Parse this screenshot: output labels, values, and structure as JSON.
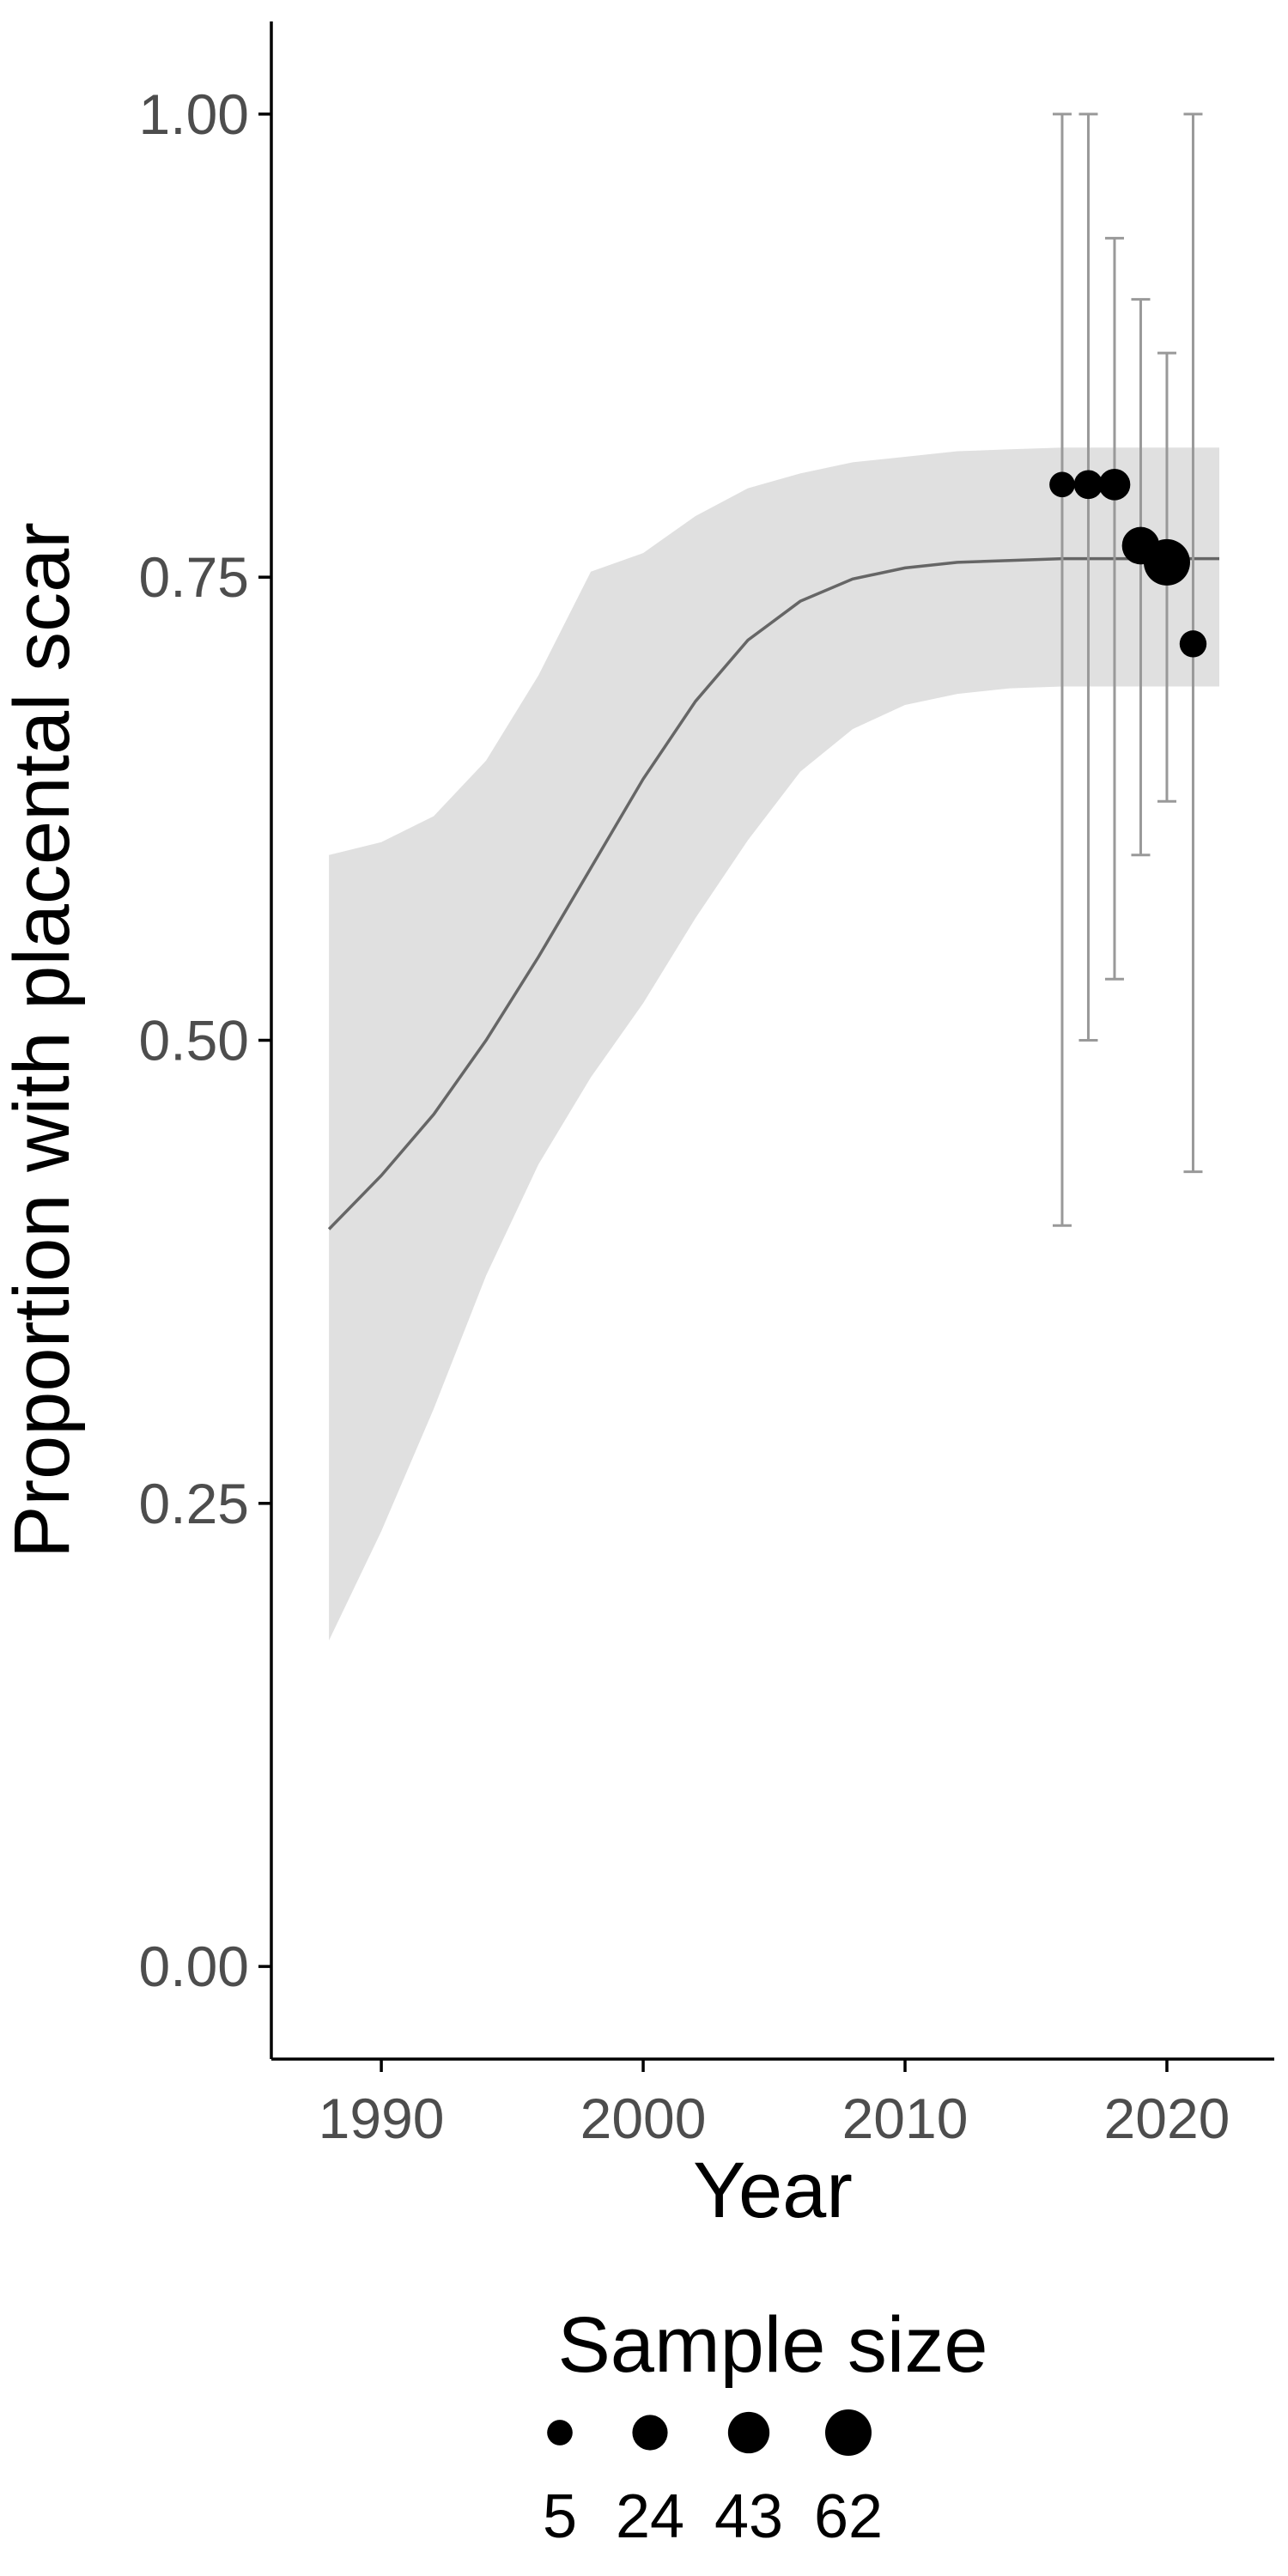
{
  "chart_data": {
    "type": "scatter",
    "title": "",
    "xlabel": "Year",
    "ylabel": "Proportion with placental scar",
    "xlim": [
      1985.8,
      2024.1
    ],
    "ylim": [
      -0.05,
      1.05
    ],
    "x_ticks": [
      1990,
      2000,
      2010,
      2020
    ],
    "x_tick_labels": [
      "1990",
      "2000",
      "2010",
      "2020"
    ],
    "y_ticks": [
      0,
      0.25,
      0.5,
      0.75,
      1.0
    ],
    "y_tick_labels": [
      "0.00",
      "0.25",
      "0.50",
      "0.75",
      "1.00"
    ],
    "grid": false,
    "points": [
      {
        "x": 2016,
        "y": 0.8,
        "n": 5,
        "lower": 0.4,
        "upper": 1.0
      },
      {
        "x": 2017,
        "y": 0.8,
        "n": 10,
        "lower": 0.5,
        "upper": 1.0
      },
      {
        "x": 2018,
        "y": 0.8,
        "n": 15,
        "lower": 0.533,
        "upper": 0.933
      },
      {
        "x": 2019,
        "y": 0.767,
        "n": 30,
        "lower": 0.6,
        "upper": 0.9
      },
      {
        "x": 2020,
        "y": 0.758,
        "n": 62,
        "lower": 0.629,
        "upper": 0.871
      },
      {
        "x": 2021,
        "y": 0.714,
        "n": 7,
        "lower": 0.429,
        "upper": 1.0
      }
    ],
    "fit": {
      "x": [
        1988,
        1990,
        1992,
        1994,
        1996,
        1998,
        2000,
        2002,
        2004,
        2006,
        2008,
        2010,
        2012,
        2014,
        2016,
        2018,
        2020,
        2022
      ],
      "y": [
        0.398,
        0.427,
        0.46,
        0.5,
        0.545,
        0.593,
        0.641,
        0.683,
        0.716,
        0.737,
        0.749,
        0.755,
        0.758,
        0.759,
        0.76,
        0.76,
        0.76,
        0.76
      ],
      "lower": [
        0.176,
        0.235,
        0.301,
        0.373,
        0.433,
        0.48,
        0.52,
        0.566,
        0.608,
        0.645,
        0.668,
        0.681,
        0.687,
        0.69,
        0.691,
        0.691,
        0.691,
        0.691
      ],
      "upper": [
        0.6,
        0.607,
        0.621,
        0.651,
        0.697,
        0.753,
        0.763,
        0.783,
        0.798,
        0.806,
        0.812,
        0.815,
        0.818,
        0.819,
        0.82,
        0.82,
        0.82,
        0.82
      ]
    },
    "legend": {
      "title": "Sample size",
      "placement": "bottom",
      "sizes": [
        5,
        24,
        43,
        62
      ],
      "labels": [
        "5",
        "24",
        "43",
        "62"
      ]
    },
    "colors": {
      "point": "#000000",
      "errorbar": "#999999",
      "ribbon": "#e0e0e0",
      "fit_line": "#666666",
      "axis": "#000000",
      "tick_text": "#4d4d4d"
    }
  }
}
